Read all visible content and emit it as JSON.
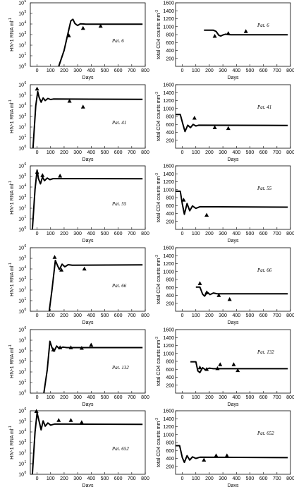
{
  "layout": {
    "rows": 6,
    "cols": 2
  },
  "chart_data": [
    {
      "id": "r1-rna",
      "type": "line",
      "panel_label": "Pat. 6",
      "xlabel": "Days",
      "ylabel": "HIV-1 RNA ml",
      "ylabel_sup": "-1",
      "xlim": [
        -50,
        800
      ],
      "xticks": [
        0,
        100,
        200,
        300,
        400,
        500,
        600,
        700,
        800
      ],
      "yscale": "log",
      "ylim": [
        0,
        6
      ],
      "ytick_exps": [
        0,
        1,
        2,
        3,
        4,
        5,
        6
      ],
      "series": [
        {
          "values": [
            [
              160,
              0
            ],
            [
              200,
              1.5
            ],
            [
              230,
              3.2
            ],
            [
              250,
              4.3
            ],
            [
              265,
              4.45
            ],
            [
              280,
              4.05
            ],
            [
              300,
              3.85
            ],
            [
              320,
              4.02
            ],
            [
              345,
              4.0
            ],
            [
              360,
              3.98
            ],
            [
              780,
              3.98
            ]
          ]
        }
      ],
      "observations": [
        [
          235,
          2.9
        ],
        [
          340,
          3.6
        ],
        [
          470,
          3.8
        ]
      ]
    },
    {
      "id": "r1-cd4",
      "type": "line",
      "panel_label": "Pat. 6",
      "xlabel": "Days",
      "ylabel": "total CD4 counts mm",
      "ylabel_sup": "-3",
      "xlim": [
        -50,
        800
      ],
      "xticks": [
        0,
        100,
        200,
        300,
        400,
        500,
        600,
        700,
        800
      ],
      "ylim": [
        0,
        1600
      ],
      "yticks": [
        200,
        400,
        600,
        800,
        1000,
        1200,
        1400,
        1600
      ],
      "series": [
        {
          "values": [
            [
              160,
              910
            ],
            [
              230,
              910
            ],
            [
              250,
              880
            ],
            [
              270,
              780
            ],
            [
              285,
              765
            ],
            [
              300,
              790
            ],
            [
              320,
              810
            ],
            [
              340,
              800
            ],
            [
              360,
              795
            ],
            [
              780,
              795
            ]
          ]
        }
      ],
      "observations": [
        [
          240,
          760
        ],
        [
          340,
          830
        ],
        [
          470,
          880
        ]
      ]
    },
    {
      "id": "r2-rna",
      "type": "line",
      "panel_label": "Pat. 41",
      "xlabel": "Days",
      "ylabel": "HIV-1 RNA ml",
      "ylabel_sup": "-1",
      "xlim": [
        -50,
        800
      ],
      "xticks": [
        0,
        100,
        200,
        300,
        400,
        500,
        600,
        700,
        800
      ],
      "yscale": "log",
      "ylim": [
        0,
        6
      ],
      "ytick_exps": [
        0,
        1,
        2,
        3,
        4,
        5,
        6
      ],
      "series": [
        {
          "values": [
            [
              -30,
              0
            ],
            [
              -10,
              4.0
            ],
            [
              5,
              5.35
            ],
            [
              15,
              4.8
            ],
            [
              30,
              4.35
            ],
            [
              45,
              4.75
            ],
            [
              60,
              4.5
            ],
            [
              80,
              4.7
            ],
            [
              100,
              4.6
            ],
            [
              120,
              4.65
            ],
            [
              780,
              4.62
            ]
          ]
        }
      ],
      "observations": [
        [
          0,
          5.6
        ],
        [
          240,
          4.45
        ],
        [
          340,
          3.9
        ]
      ]
    },
    {
      "id": "r2-cd4",
      "type": "line",
      "panel_label": "Pat. 41",
      "xlabel": "Days",
      "ylabel": "total CD4 counts mm",
      "ylabel_sup": "-3",
      "xlim": [
        -50,
        800
      ],
      "xticks": [
        0,
        100,
        200,
        300,
        400,
        500,
        600,
        700,
        800
      ],
      "ylim": [
        0,
        1600
      ],
      "yticks": [
        200,
        400,
        600,
        800,
        1000,
        1200,
        1400,
        1600
      ],
      "series": [
        {
          "values": [
            [
              -50,
              850
            ],
            [
              -15,
              850
            ],
            [
              5,
              600
            ],
            [
              20,
              420
            ],
            [
              40,
              580
            ],
            [
              60,
              520
            ],
            [
              80,
              600
            ],
            [
              100,
              560
            ],
            [
              120,
              580
            ],
            [
              780,
              575
            ]
          ]
        }
      ],
      "observations": [
        [
          90,
          760
        ],
        [
          240,
          520
        ],
        [
          340,
          500
        ]
      ]
    },
    {
      "id": "r3-rna",
      "type": "line",
      "panel_label": "Pat. 55",
      "xlabel": "Days",
      "ylabel": "HIV-1 RNA ml",
      "ylabel_sup": "-1",
      "xlim": [
        -50,
        800
      ],
      "xticks": [
        0,
        100,
        200,
        300,
        400,
        500,
        600,
        700,
        800
      ],
      "yscale": "log",
      "ylim": [
        0,
        6
      ],
      "ytick_exps": [
        0,
        1,
        2,
        3,
        4,
        5,
        6
      ],
      "series": [
        {
          "values": [
            [
              -35,
              0
            ],
            [
              -15,
              3.8
            ],
            [
              0,
              5.6
            ],
            [
              10,
              4.8
            ],
            [
              25,
              4.3
            ],
            [
              40,
              4.95
            ],
            [
              55,
              4.6
            ],
            [
              75,
              4.85
            ],
            [
              95,
              4.7
            ],
            [
              120,
              4.8
            ],
            [
              780,
              4.78
            ]
          ]
        }
      ],
      "observations": [
        [
          0,
          5.4
        ],
        [
          40,
          5.1
        ],
        [
          170,
          5.05
        ]
      ]
    },
    {
      "id": "r3-cd4",
      "type": "line",
      "panel_label": "Pat. 55",
      "xlabel": "Days",
      "ylabel": "total CD4 counts mm",
      "ylabel_sup": "-3",
      "xlim": [
        -50,
        800
      ],
      "xticks": [
        0,
        100,
        200,
        300,
        400,
        500,
        600,
        700,
        800
      ],
      "ylim": [
        0,
        1600
      ],
      "yticks": [
        200,
        400,
        600,
        800,
        1000,
        1200,
        1400,
        1600
      ],
      "series": [
        {
          "values": [
            [
              -50,
              960
            ],
            [
              -15,
              960
            ],
            [
              0,
              640
            ],
            [
              15,
              380
            ],
            [
              35,
              650
            ],
            [
              55,
              470
            ],
            [
              75,
              590
            ],
            [
              100,
              530
            ],
            [
              130,
              570
            ],
            [
              780,
              560
            ]
          ]
        }
      ],
      "observations": [
        [
          10,
          740
        ],
        [
          180,
          360
        ]
      ]
    },
    {
      "id": "r4-rna",
      "type": "line",
      "panel_label": "Pat. 66",
      "xlabel": "Days",
      "ylabel": "HIV-1 RNA ml",
      "ylabel_sup": "-1",
      "xlim": [
        -50,
        800
      ],
      "xticks": [
        0,
        100,
        200,
        300,
        400,
        500,
        600,
        700,
        800
      ],
      "yscale": "log",
      "ylim": [
        0,
        6
      ],
      "ytick_exps": [
        0,
        1,
        2,
        3,
        4,
        5,
        6
      ],
      "series": [
        {
          "values": [
            [
              90,
              0
            ],
            [
              110,
              2.0
            ],
            [
              135,
              4.8
            ],
            [
              150,
              4.35
            ],
            [
              165,
              3.95
            ],
            [
              185,
              4.45
            ],
            [
              205,
              4.2
            ],
            [
              230,
              4.4
            ],
            [
              260,
              4.35
            ],
            [
              780,
              4.38
            ]
          ]
        }
      ],
      "observations": [
        [
          130,
          5.1
        ],
        [
          180,
          3.9
        ],
        [
          350,
          4.0
        ]
      ]
    },
    {
      "id": "r4-cd4",
      "type": "line",
      "panel_label": "Pat. 66",
      "xlabel": "Days",
      "ylabel": "total CD4 counts mm",
      "ylabel_sup": "-3",
      "xlim": [
        -50,
        800
      ],
      "xticks": [
        0,
        100,
        200,
        300,
        400,
        500,
        600,
        700,
        800
      ],
      "ylim": [
        0,
        1600
      ],
      "yticks": [
        200,
        400,
        600,
        800,
        1000,
        1200,
        1400,
        1600
      ],
      "series": [
        {
          "values": [
            [
              100,
              610
            ],
            [
              130,
              610
            ],
            [
              150,
              430
            ],
            [
              165,
              380
            ],
            [
              185,
              480
            ],
            [
              205,
              420
            ],
            [
              230,
              460
            ],
            [
              260,
              440
            ],
            [
              780,
              440
            ]
          ]
        }
      ],
      "observations": [
        [
          130,
          700
        ],
        [
          180,
          470
        ],
        [
          270,
          400
        ],
        [
          350,
          300
        ]
      ]
    },
    {
      "id": "r5-rna",
      "type": "line",
      "panel_label": "Pat. 132",
      "xlabel": "Days",
      "ylabel": "HIV-1 RNA ml",
      "ylabel_sup": "-1",
      "xlim": [
        -50,
        800
      ],
      "xticks": [
        0,
        100,
        200,
        300,
        400,
        500,
        600,
        700,
        800
      ],
      "yscale": "log",
      "ylim": [
        0,
        6
      ],
      "ytick_exps": [
        0,
        1,
        2,
        3,
        4,
        5,
        6
      ],
      "series": [
        {
          "values": [
            [
              50,
              0
            ],
            [
              75,
              2.2
            ],
            [
              95,
              4.9
            ],
            [
              110,
              4.3
            ],
            [
              125,
              3.95
            ],
            [
              145,
              4.45
            ],
            [
              165,
              4.2
            ],
            [
              190,
              4.35
            ],
            [
              220,
              4.3
            ],
            [
              780,
              4.3
            ]
          ]
        }
      ],
      "observations": [
        [
          120,
          4.1
        ],
        [
          170,
          4.3
        ],
        [
          250,
          4.3
        ],
        [
          330,
          4.25
        ],
        [
          400,
          4.55
        ]
      ]
    },
    {
      "id": "r5-cd4",
      "type": "line",
      "panel_label": "Pat. 132",
      "xlabel": "Days",
      "ylabel": "total CD4 counts mm",
      "ylabel_sup": "-3",
      "xlim": [
        -50,
        800
      ],
      "xticks": [
        0,
        100,
        200,
        300,
        400,
        500,
        600,
        700,
        800
      ],
      "ylim": [
        0,
        1600
      ],
      "yticks": [
        200,
        400,
        600,
        800,
        1000,
        1200,
        1400,
        1600
      ],
      "series": [
        {
          "values": [
            [
              60,
              790
            ],
            [
              100,
              790
            ],
            [
              115,
              560
            ],
            [
              130,
              520
            ],
            [
              150,
              640
            ],
            [
              170,
              590
            ],
            [
              200,
              630
            ],
            [
              230,
              615
            ],
            [
              780,
              615
            ]
          ]
        }
      ],
      "observations": [
        [
          130,
          640
        ],
        [
          180,
          600
        ],
        [
          260,
          620
        ],
        [
          280,
          720
        ],
        [
          380,
          720
        ],
        [
          410,
          570
        ]
      ]
    },
    {
      "id": "r6-rna",
      "type": "line",
      "panel_label": "Pat. 652",
      "xlabel": "Days",
      "ylabel": "HIV-1 RNA ml",
      "ylabel_sup": "-1",
      "xlim": [
        -50,
        800
      ],
      "xticks": [
        0,
        100,
        200,
        300,
        400,
        500,
        600,
        700,
        800
      ],
      "yscale": "log",
      "ylim": [
        0,
        6
      ],
      "ytick_exps": [
        0,
        1,
        2,
        3,
        4,
        5,
        6
      ],
      "series": [
        {
          "values": [
            [
              -35,
              0
            ],
            [
              -15,
              4.0
            ],
            [
              0,
              5.8
            ],
            [
              15,
              5.0
            ],
            [
              30,
              4.2
            ],
            [
              45,
              5.05
            ],
            [
              60,
              4.55
            ],
            [
              80,
              4.85
            ],
            [
              100,
              4.65
            ],
            [
              130,
              4.75
            ],
            [
              780,
              4.72
            ]
          ]
        }
      ],
      "observations": [
        [
          -5,
          5.95
        ],
        [
          160,
          5.1
        ],
        [
          250,
          5.1
        ],
        [
          330,
          4.9
        ]
      ]
    },
    {
      "id": "r6-cd4",
      "type": "line",
      "panel_label": "Pat. 652",
      "xlabel": "Days",
      "ylabel": "total CD4 counts mm",
      "ylabel_sup": "-3",
      "xlim": [
        -50,
        800
      ],
      "xticks": [
        0,
        100,
        200,
        300,
        400,
        500,
        600,
        700,
        800
      ],
      "ylim": [
        0,
        1600
      ],
      "yticks": [
        200,
        400,
        600,
        800,
        1000,
        1200,
        1400,
        1600
      ],
      "series": [
        {
          "values": [
            [
              -50,
              720
            ],
            [
              -20,
              720
            ],
            [
              0,
              420
            ],
            [
              15,
              300
            ],
            [
              35,
              470
            ],
            [
              55,
              360
            ],
            [
              75,
              440
            ],
            [
              100,
              400
            ],
            [
              130,
              430
            ],
            [
              780,
              420
            ]
          ]
        }
      ],
      "observations": [
        [
          160,
          360
        ],
        [
          250,
          470
        ],
        [
          330,
          470
        ]
      ]
    }
  ]
}
